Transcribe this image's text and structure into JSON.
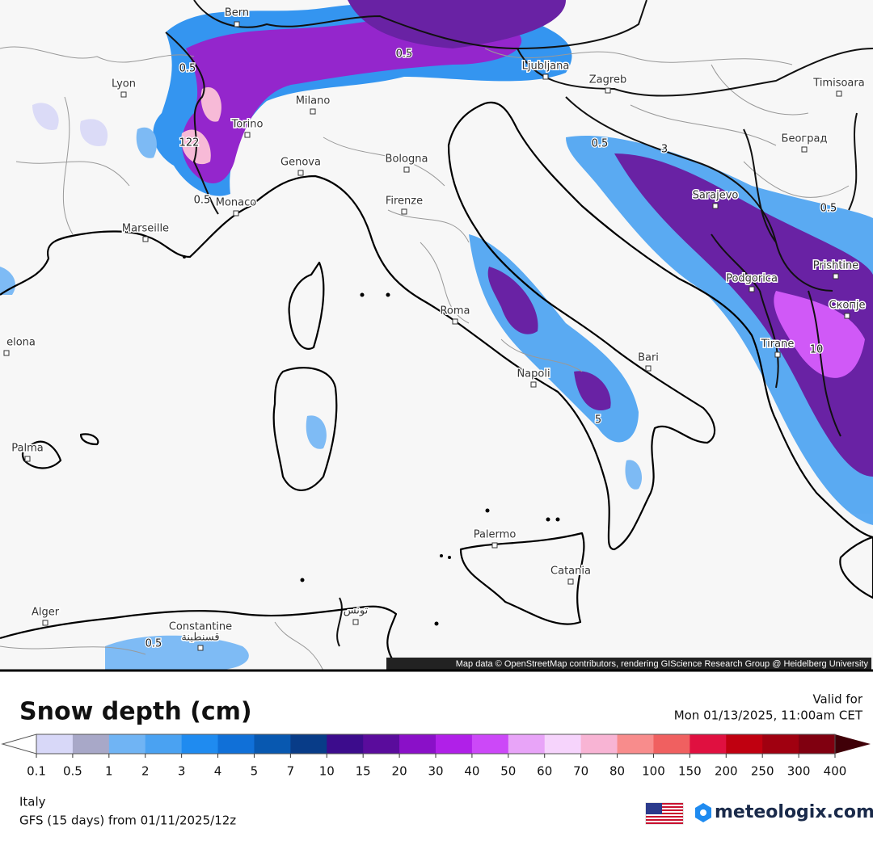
{
  "map": {
    "cities": [
      "Bern",
      "Lyon",
      "Milano",
      "Torino",
      "Genova",
      "Bologna",
      "Firenze",
      "Monaco",
      "Marseille",
      "Roma",
      "Napoli",
      "Bari",
      "Palermo",
      "Catania",
      "Alger",
      "Constantine",
      "قسنطينة",
      "تونس",
      "Ljubljana",
      "Zagreb",
      "Timisoara",
      "Београд",
      "Sarajevo",
      "Podgorica",
      "Prishtine",
      "Скопје",
      "Tirane",
      "Palma",
      "elona"
    ],
    "contour_labels": [
      "122",
      "0.5",
      "0.5",
      "0.5",
      "0.5",
      "0.5",
      "3",
      "10",
      "5",
      "0.5"
    ],
    "attribution": "Map data © OpenStreetMap contributors, rendering GIScience Research Group @ Heidelberg University"
  },
  "legend": {
    "title": "Snow depth (cm)",
    "valid_label": "Valid for",
    "valid_time": "Mon 01/13/2025, 11:00am CET",
    "ticks": [
      "0.1",
      "0.5",
      "1",
      "2",
      "3",
      "4",
      "5",
      "7",
      "10",
      "15",
      "20",
      "30",
      "40",
      "50",
      "60",
      "70",
      "80",
      "100",
      "150",
      "200",
      "250",
      "300",
      "400"
    ],
    "colors": [
      "#d8d8f8",
      "#a8a8c8",
      "#70b4f4",
      "#4aa2f2",
      "#1f8bf0",
      "#1070d8",
      "#0858b0",
      "#083c88",
      "#3c0c8c",
      "#5a0c9c",
      "#8a10c8",
      "#b020e8",
      "#cc48f8",
      "#e8a4f8",
      "#f6d4fc",
      "#f8b4d4",
      "#f88c8c",
      "#f06060",
      "#e01040",
      "#c00010",
      "#a00010",
      "#800010"
    ],
    "under_color": "#ffffff",
    "over_color": "#400008"
  },
  "footer": {
    "region": "Italy",
    "model_run": "GFS (15 days) from 01/11/2025/12z",
    "brand": "meteologix.com"
  }
}
